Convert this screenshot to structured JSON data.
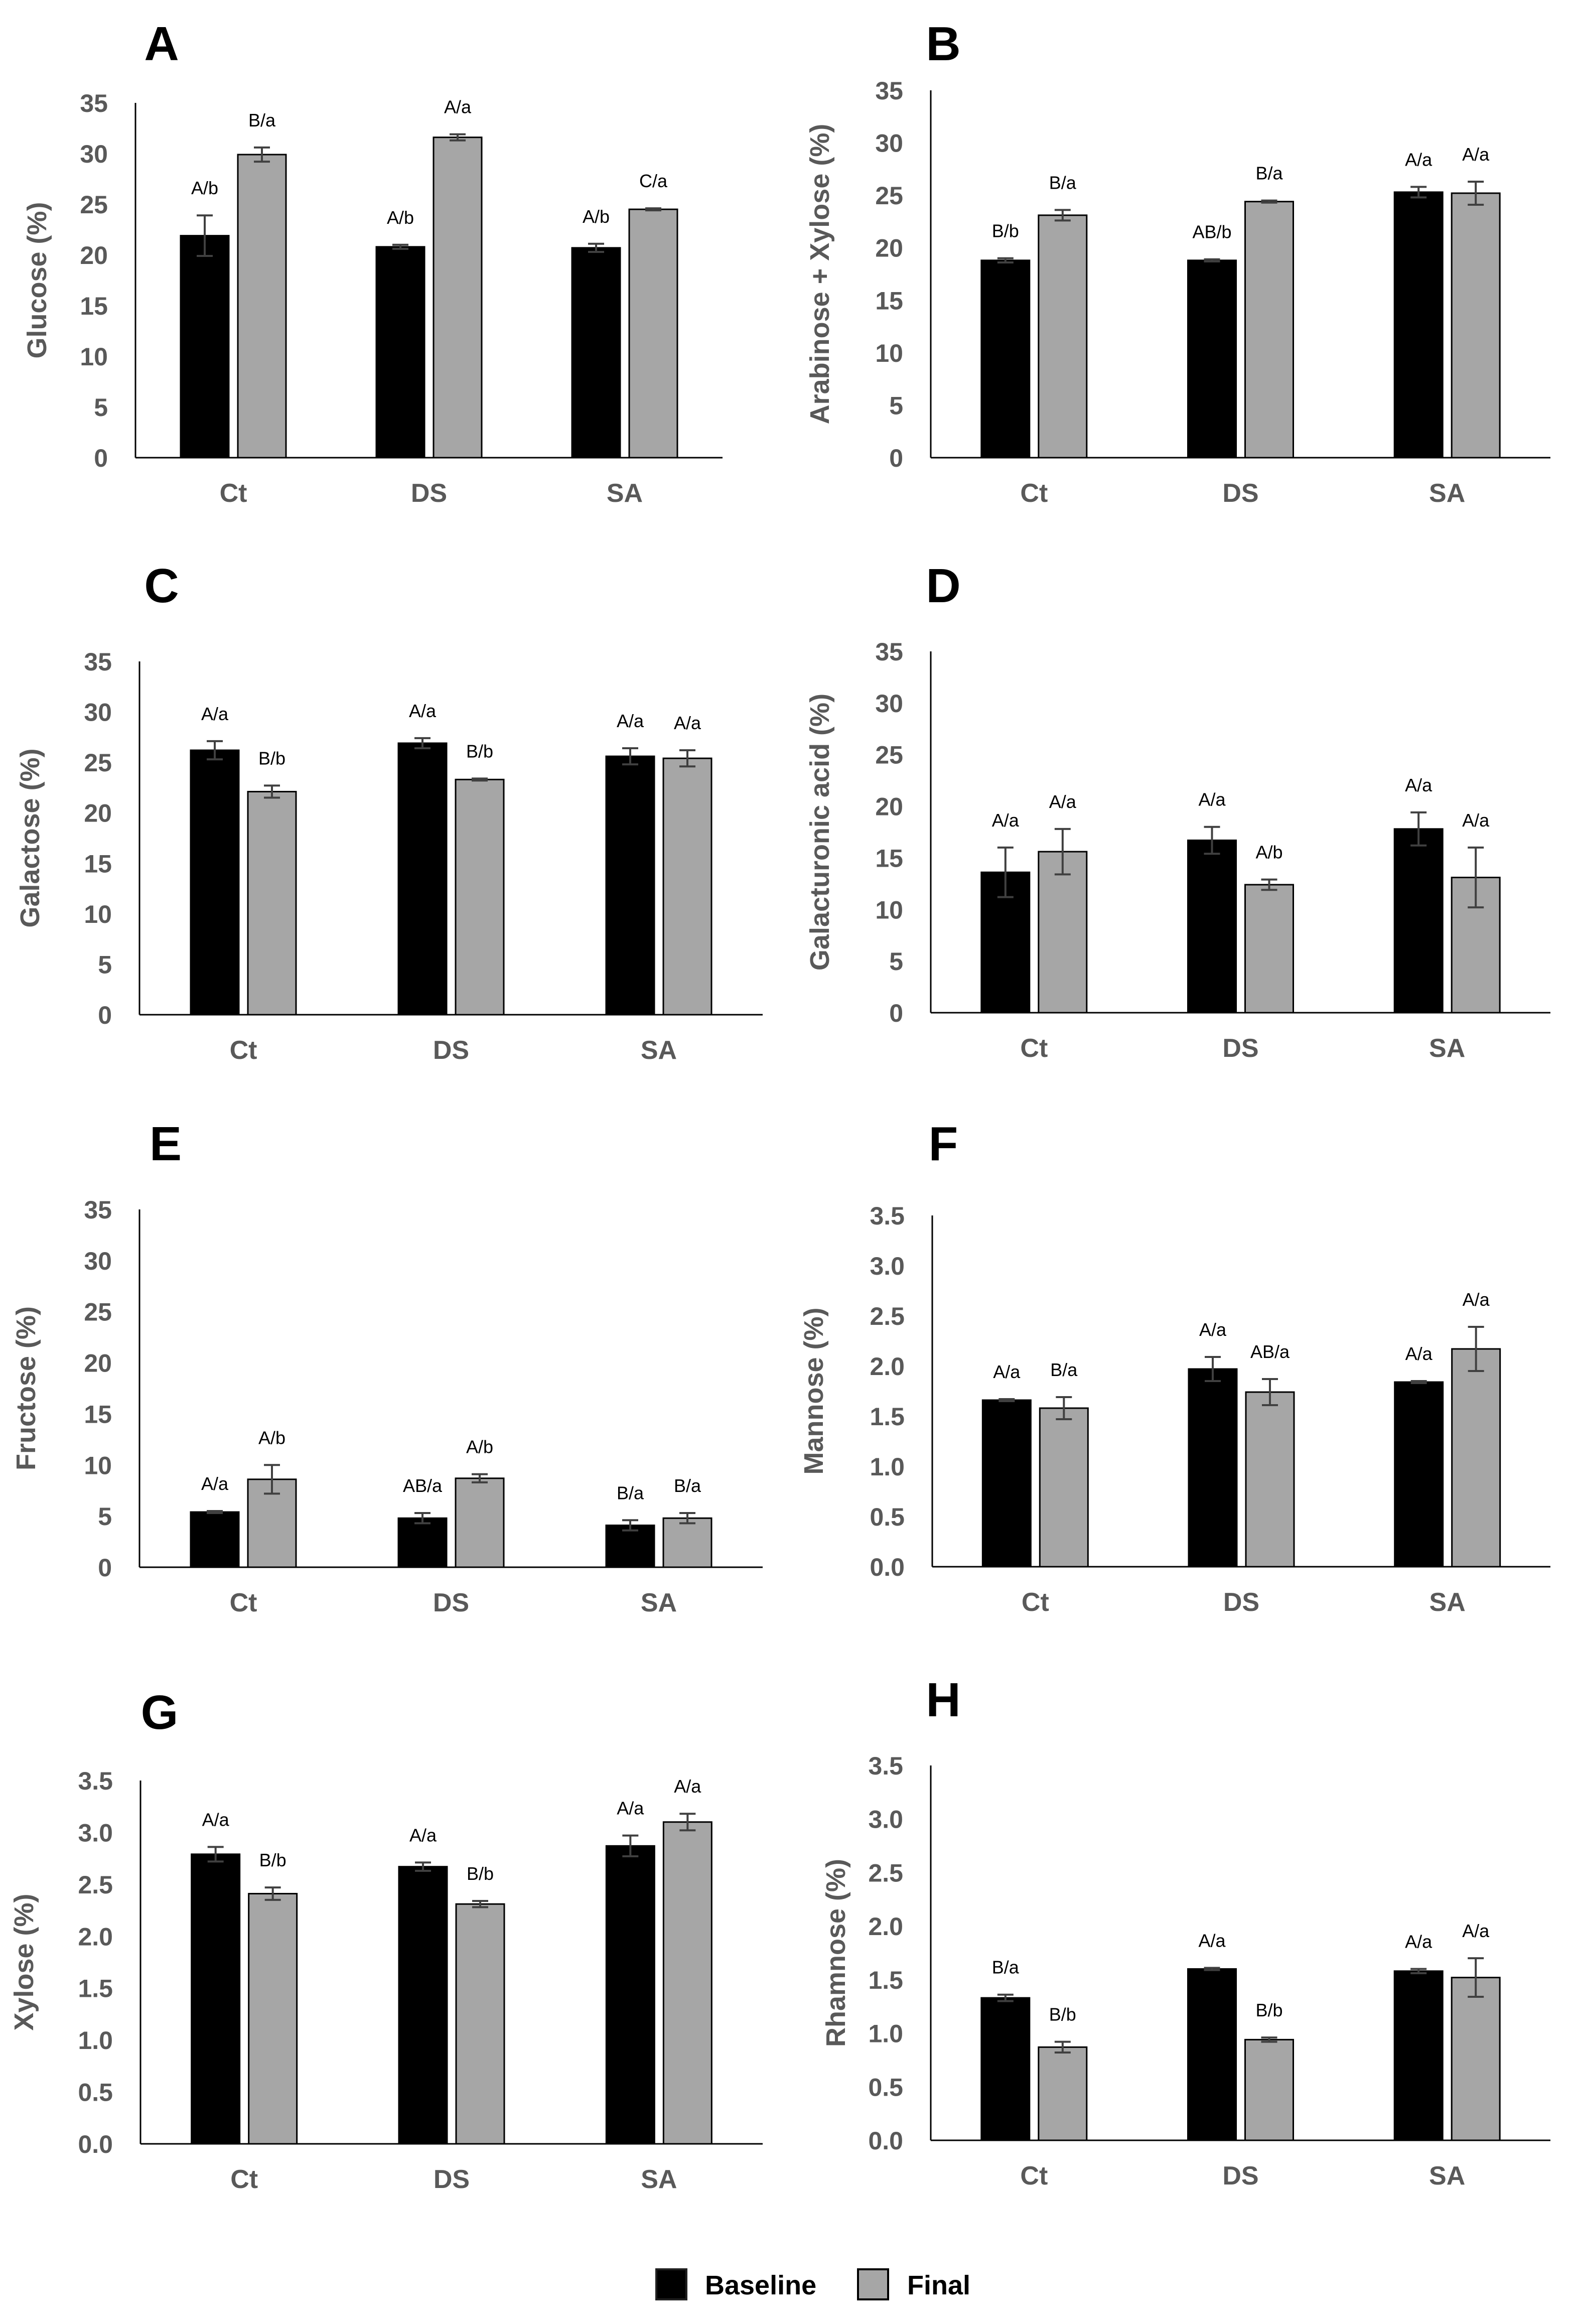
{
  "colors": {
    "baseline": "#000000",
    "final": "#A6A6A6",
    "axis": "#595959",
    "error": "#404040"
  },
  "legend": {
    "baseline": "Baseline",
    "final": "Final"
  },
  "chart_data": [
    {
      "panel": "A",
      "type": "bar",
      "ylabel": "Glucose (%)",
      "ylim": [
        0,
        35
      ],
      "yticks": [
        "0",
        "5",
        "10",
        "15",
        "20",
        "25",
        "30",
        "35"
      ],
      "categories": [
        "Ct",
        "DS",
        "SA"
      ],
      "series": [
        {
          "name": "Baseline",
          "values": [
            21.9,
            20.8,
            20.7
          ],
          "errors": [
            2.0,
            0.2,
            0.4
          ],
          "labels": [
            "A/b",
            "A/b",
            "A/b"
          ]
        },
        {
          "name": "Final",
          "values": [
            29.9,
            31.6,
            24.5
          ],
          "errors": [
            0.7,
            0.3,
            0.1
          ],
          "labels": [
            "B/a",
            "A/a",
            "C/a"
          ]
        }
      ]
    },
    {
      "panel": "B",
      "type": "bar",
      "ylabel": "Arabinose + Xylose (%)",
      "ylim": [
        0,
        35
      ],
      "yticks": [
        "0",
        "5",
        "10",
        "15",
        "20",
        "25",
        "30",
        "35"
      ],
      "categories": [
        "Ct",
        "DS",
        "SA"
      ],
      "series": [
        {
          "name": "Baseline",
          "values": [
            18.8,
            18.8,
            25.3
          ],
          "errors": [
            0.2,
            0.1,
            0.5
          ],
          "labels": [
            "B/b",
            "AB/b",
            "A/a"
          ]
        },
        {
          "name": "Final",
          "values": [
            23.1,
            24.4,
            25.2
          ],
          "errors": [
            0.5,
            0.1,
            1.1
          ],
          "labels": [
            "B/a",
            "B/a",
            "A/a"
          ]
        }
      ]
    },
    {
      "panel": "C",
      "type": "bar",
      "ylabel": "Galactose (%)",
      "ylim": [
        0,
        35
      ],
      "yticks": [
        "0",
        "5",
        "10",
        "15",
        "20",
        "25",
        "30",
        "35"
      ],
      "categories": [
        "Ct",
        "DS",
        "SA"
      ],
      "series": [
        {
          "name": "Baseline",
          "values": [
            26.2,
            26.9,
            25.6
          ],
          "errors": [
            0.9,
            0.5,
            0.8
          ],
          "labels": [
            "A/a",
            "A/a",
            "A/a"
          ]
        },
        {
          "name": "Final",
          "values": [
            22.1,
            23.3,
            25.4
          ],
          "errors": [
            0.6,
            0.1,
            0.8
          ],
          "labels": [
            "B/b",
            "B/b",
            "A/a"
          ]
        }
      ]
    },
    {
      "panel": "D",
      "type": "bar",
      "ylabel": "Galacturonic acid (%)",
      "ylim": [
        0,
        35
      ],
      "yticks": [
        "0",
        "5",
        "10",
        "15",
        "20",
        "25",
        "30",
        "35"
      ],
      "categories": [
        "Ct",
        "DS",
        "SA"
      ],
      "series": [
        {
          "name": "Baseline",
          "values": [
            13.6,
            16.7,
            17.8
          ],
          "errors": [
            2.4,
            1.3,
            1.6
          ],
          "labels": [
            "A/a",
            "A/a",
            "A/a"
          ]
        },
        {
          "name": "Final",
          "values": [
            15.6,
            12.4,
            13.1
          ],
          "errors": [
            2.2,
            0.5,
            2.9
          ],
          "labels": [
            "A/a",
            "A/b",
            "A/a"
          ]
        }
      ]
    },
    {
      "panel": "E",
      "type": "bar",
      "ylabel": "Fructose (%)",
      "ylim": [
        0,
        35
      ],
      "yticks": [
        "0",
        "5",
        "10",
        "15",
        "20",
        "25",
        "30",
        "35"
      ],
      "categories": [
        "Ct",
        "DS",
        "SA"
      ],
      "series": [
        {
          "name": "Baseline",
          "values": [
            5.4,
            4.8,
            4.1
          ],
          "errors": [
            0.1,
            0.5,
            0.5
          ],
          "labels": [
            "A/a",
            "AB/a",
            "B/a"
          ]
        },
        {
          "name": "Final",
          "values": [
            8.6,
            8.7,
            4.8
          ],
          "errors": [
            1.4,
            0.4,
            0.5
          ],
          "labels": [
            "A/b",
            "A/b",
            "B/a"
          ]
        }
      ]
    },
    {
      "panel": "F",
      "type": "bar",
      "ylabel": "Mannose (%)",
      "ylim": [
        0,
        3.5
      ],
      "yticks": [
        "0.0",
        "0.5",
        "1.0",
        "1.5",
        "2.0",
        "2.5",
        "3.0",
        "3.5"
      ],
      "categories": [
        "Ct",
        "DS",
        "SA"
      ],
      "series": [
        {
          "name": "Baseline",
          "values": [
            1.66,
            1.97,
            1.84
          ],
          "errors": [
            0.01,
            0.12,
            0.01
          ],
          "labels": [
            "A/a",
            "A/a",
            "A/a"
          ]
        },
        {
          "name": "Final",
          "values": [
            1.58,
            1.74,
            2.17
          ],
          "errors": [
            0.11,
            0.13,
            0.22
          ],
          "labels": [
            "B/a",
            "AB/a",
            "A/a"
          ]
        }
      ]
    },
    {
      "panel": "G",
      "type": "bar",
      "ylabel": "Xylose (%)",
      "ylim": [
        0,
        3.5
      ],
      "yticks": [
        "0.0",
        "0.5",
        "1.0",
        "1.5",
        "2.0",
        "2.5",
        "3.0",
        "3.5"
      ],
      "categories": [
        "Ct",
        "DS",
        "SA"
      ],
      "series": [
        {
          "name": "Baseline",
          "values": [
            2.79,
            2.67,
            2.87
          ],
          "errors": [
            0.07,
            0.04,
            0.1
          ],
          "labels": [
            "A/a",
            "A/a",
            "A/a"
          ]
        },
        {
          "name": "Final",
          "values": [
            2.41,
            2.31,
            3.1
          ],
          "errors": [
            0.06,
            0.03,
            0.08
          ],
          "labels": [
            "B/b",
            "B/b",
            "A/a"
          ]
        }
      ]
    },
    {
      "panel": "H",
      "type": "bar",
      "ylabel": "Rhamnose (%)",
      "ylim": [
        0,
        3.5
      ],
      "yticks": [
        "0.0",
        "0.5",
        "1.0",
        "1.5",
        "2.0",
        "2.5",
        "3.0",
        "3.5"
      ],
      "categories": [
        "Ct",
        "DS",
        "SA"
      ],
      "series": [
        {
          "name": "Baseline",
          "values": [
            1.33,
            1.6,
            1.58
          ],
          "errors": [
            0.03,
            0.01,
            0.02
          ],
          "labels": [
            "B/a",
            "A/a",
            "A/a"
          ]
        },
        {
          "name": "Final",
          "values": [
            0.87,
            0.94,
            1.52
          ],
          "errors": [
            0.05,
            0.02,
            0.18
          ],
          "labels": [
            "B/b",
            "B/b",
            "A/a"
          ]
        }
      ]
    }
  ]
}
